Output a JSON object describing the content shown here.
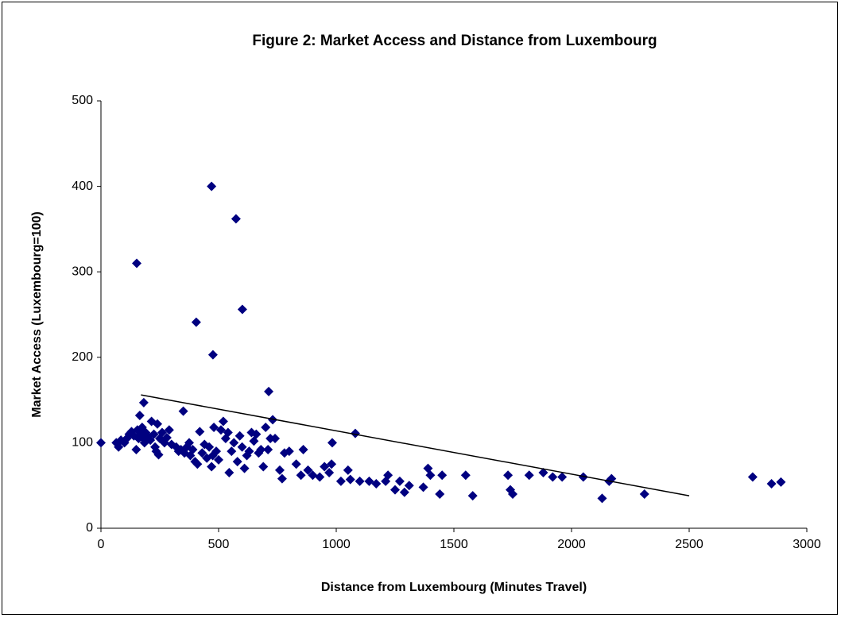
{
  "chart_data": {
    "type": "scatter",
    "title": "Figure 2: Market Access and Distance from Luxembourg",
    "x_label": "Distance from Luxembourg (Minutes Travel)",
    "y_label": "Market Access (Luxembourg=100)",
    "color": "#000080",
    "xlim": [
      0,
      3000
    ],
    "xticks": [
      0,
      500,
      1000,
      1500,
      2000,
      2500,
      3000
    ],
    "ylim": [
      0,
      500
    ],
    "yticks": [
      0,
      100,
      200,
      300,
      400,
      500
    ],
    "grid": false,
    "x": [
      0,
      152,
      470,
      574,
      601,
      405,
      476,
      713,
      182,
      1081,
      983,
      65,
      75,
      85,
      100,
      110,
      120,
      130,
      140,
      150,
      155,
      160,
      165,
      170,
      175,
      180,
      185,
      190,
      200,
      210,
      215,
      225,
      230,
      235,
      240,
      245,
      250,
      260,
      270,
      280,
      290,
      300,
      320,
      330,
      340,
      350,
      355,
      365,
      375,
      380,
      390,
      400,
      410,
      420,
      430,
      440,
      450,
      460,
      470,
      475,
      480,
      490,
      500,
      510,
      520,
      530,
      540,
      545,
      555,
      565,
      580,
      590,
      600,
      610,
      620,
      630,
      640,
      650,
      660,
      670,
      680,
      690,
      700,
      710,
      720,
      730,
      740,
      760,
      770,
      780,
      800,
      830,
      850,
      860,
      880,
      900,
      930,
      950,
      970,
      980,
      1020,
      1050,
      1060,
      1100,
      1140,
      1170,
      1210,
      1220,
      1250,
      1270,
      1290,
      1310,
      1370,
      1390,
      1400,
      1440,
      1450,
      1550,
      1580,
      1730,
      1740,
      1750,
      1820,
      1880,
      1920,
      1960,
      2050,
      2130,
      2160,
      2170,
      2310,
      2770,
      2850,
      2890
    ],
    "y": [
      100,
      310,
      400,
      362,
      256,
      241,
      203,
      160,
      147,
      111,
      100,
      100,
      95,
      103,
      100,
      105,
      110,
      113,
      108,
      92,
      115,
      105,
      132,
      110,
      118,
      105,
      100,
      112,
      108,
      103,
      125,
      110,
      95,
      90,
      122,
      86,
      105,
      112,
      100,
      106,
      115,
      98,
      95,
      90,
      92,
      137,
      88,
      95,
      100,
      85,
      92,
      78,
      75,
      113,
      88,
      98,
      82,
      95,
      72,
      85,
      118,
      90,
      80,
      115,
      125,
      105,
      112,
      65,
      90,
      100,
      78,
      108,
      95,
      70,
      85,
      90,
      112,
      102,
      110,
      88,
      92,
      72,
      118,
      92,
      105,
      127,
      105,
      68,
      58,
      88,
      90,
      75,
      62,
      92,
      68,
      62,
      60,
      72,
      65,
      75,
      55,
      68,
      57,
      55,
      55,
      52,
      55,
      62,
      45,
      55,
      42,
      50,
      48,
      70,
      62,
      40,
      62,
      62,
      38,
      62,
      45,
      40,
      62,
      65,
      60,
      60,
      60,
      35,
      55,
      58,
      40,
      60,
      52,
      54
    ],
    "trendline": {
      "color": "#000000",
      "x": [
        170,
        2500
      ],
      "y": [
        156,
        38
      ]
    }
  }
}
